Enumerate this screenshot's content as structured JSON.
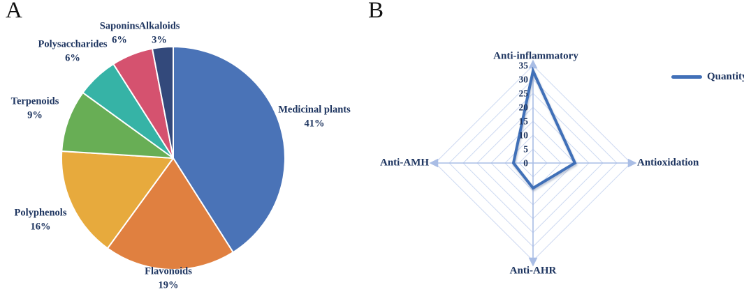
{
  "panels": [
    {
      "label": "A"
    },
    {
      "label": "B"
    }
  ],
  "colors": {
    "text_navy": "#1e3560",
    "panel_letter": "#111111",
    "pie_slice_border": "#ffffff"
  },
  "chart_data": [
    {
      "type": "pie",
      "panel": "A",
      "categories": [
        "Medicinal plants",
        "Flavonoids",
        "Polyphenols",
        "Terpenoids",
        "Polysaccharides",
        "Saponins",
        "Alkaloids"
      ],
      "values": [
        41,
        19,
        16,
        9,
        6,
        6,
        3
      ],
      "unit": "%",
      "colors": [
        "#4a73b7",
        "#e08040",
        "#e7aa3d",
        "#68ae55",
        "#36b3a6",
        "#d5526f",
        "#33497b"
      ],
      "start_angle_deg": 0,
      "direction": "clockwise",
      "labels_outside": true,
      "label_format": "{name}\n{value}%"
    },
    {
      "type": "radar",
      "panel": "B",
      "categories": [
        "Anti-inflammatory",
        "Antioxidation",
        "Anti-AHR",
        "Anti-AMH"
      ],
      "series": [
        {
          "name": "Quantity",
          "values": [
            33,
            15,
            9,
            7
          ],
          "color": "#4170b8"
        }
      ],
      "ticks": [
        0,
        5,
        10,
        15,
        20,
        25,
        30,
        35
      ],
      "rmin": 0,
      "rmax": 35,
      "tick_step": 5,
      "grid_shape": "diamond",
      "grid_on": true,
      "grid_color": "#cdd9f1",
      "axis_color": "#a9bde5",
      "axes_have_arrows": true,
      "legend": {
        "label": "Quantity",
        "position": "right"
      }
    }
  ]
}
